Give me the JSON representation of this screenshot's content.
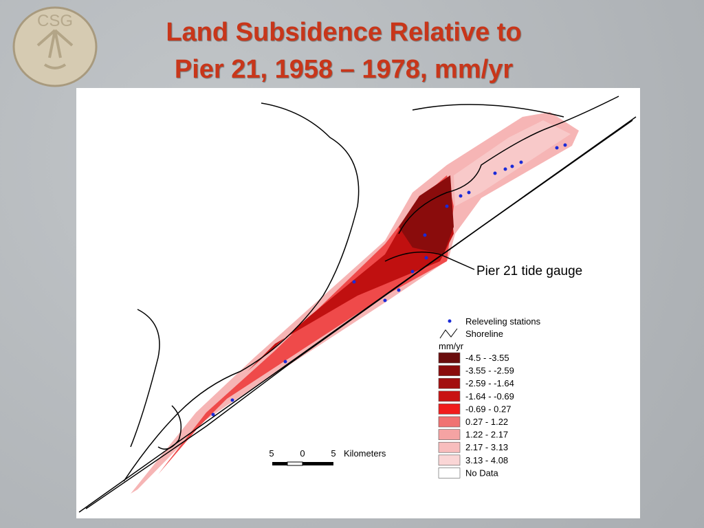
{
  "logo": {
    "text": "CSG"
  },
  "title": {
    "line1": "Land Subsidence Relative to",
    "line2": "Pier 21, 1958 – 1978, mm/yr"
  },
  "map": {
    "callout": "Pier 21 tide gauge",
    "legend": {
      "symbols": [
        "Releveling stations",
        "Shoreline"
      ],
      "unit": "mm/yr",
      "items": [
        {
          "label": "-4.5 - -3.55",
          "color": "#6a0d0d"
        },
        {
          "label": "-3.55 - -2.59",
          "color": "#8a0c0c"
        },
        {
          "label": "-2.59 - -1.64",
          "color": "#a30f0f"
        },
        {
          "label": "-1.64 - -0.69",
          "color": "#c81313"
        },
        {
          "label": "-0.69 - 0.27",
          "color": "#f01c1c"
        },
        {
          "label": "0.27 - 1.22",
          "color": "#f07272"
        },
        {
          "label": "1.22 - 2.17",
          "color": "#f5a3a3"
        },
        {
          "label": "2.17 - 3.13",
          "color": "#f8bdbd"
        },
        {
          "label": "3.13 - 4.08",
          "color": "#fad6d6"
        },
        {
          "label": "No Data",
          "color": "#ffffff"
        }
      ]
    },
    "scale": {
      "labels": [
        "5",
        "0",
        "5"
      ],
      "unit": "Kilometers"
    }
  }
}
